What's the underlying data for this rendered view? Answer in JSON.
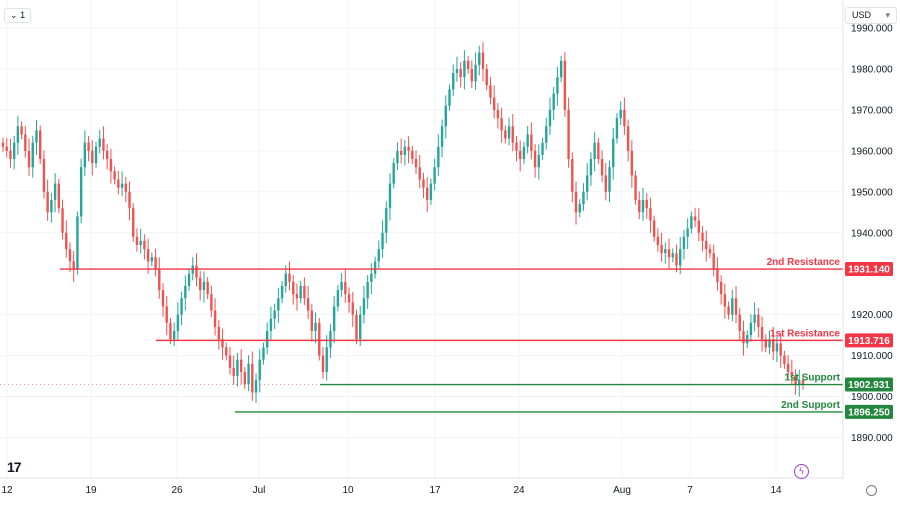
{
  "toolbar": {
    "interval_label": "1",
    "currency_label": "USD"
  },
  "icons": {
    "interval": "chevron-down-icon",
    "currency": "chevron-down-icon",
    "logo": "tradingview-logo-icon",
    "flash": "lightning-icon",
    "settings": "gear-icon"
  },
  "colors": {
    "up": "#26a69a",
    "down": "#ef5350",
    "resistance": "#f23645",
    "support": "#22873c",
    "grid": "#f0f3fa"
  },
  "chart_data": {
    "type": "candlestick",
    "ylim": [
      1887,
      1994
    ],
    "y_ticks": [
      "1990.000",
      "1980.000",
      "1970.000",
      "1960.000",
      "1950.000",
      "1940.000",
      "1920.000",
      "1910.000",
      "1900.000",
      "1890.000"
    ],
    "y_tick_values": [
      1990,
      1980,
      1970,
      1960,
      1950,
      1940,
      1920,
      1910,
      1900,
      1890
    ],
    "x_labels": [
      "12",
      "19",
      "26",
      "Jul",
      "10",
      "17",
      "24",
      "Aug",
      "7",
      "14"
    ],
    "levels": [
      {
        "name": "2nd Resistance",
        "value": 1931.14,
        "label": "1931.140",
        "kind": "resistance"
      },
      {
        "name": "1st Resistance",
        "value": 1913.716,
        "label": "1913.716",
        "kind": "resistance"
      },
      {
        "name": "1st Support",
        "value": 1902.931,
        "label": "1902.931",
        "kind": "support"
      },
      {
        "name": "2nd Support",
        "value": 1896.25,
        "label": "1896.250",
        "kind": "support"
      }
    ],
    "series_close": [
      1961,
      1960,
      1958,
      1962,
      1966,
      1964,
      1960,
      1956,
      1962,
      1965,
      1958,
      1950,
      1945,
      1948,
      1952,
      1946,
      1940,
      1936,
      1933,
      1931,
      1944,
      1956,
      1962,
      1960,
      1957,
      1961,
      1963,
      1960,
      1958,
      1955,
      1953,
      1951,
      1952,
      1950,
      1946,
      1939,
      1937,
      1938,
      1936,
      1933,
      1934,
      1931,
      1926,
      1922,
      1918,
      1914,
      1916,
      1920,
      1924,
      1927,
      1930,
      1932,
      1929,
      1926,
      1928,
      1925,
      1921,
      1917,
      1914,
      1912,
      1910,
      1907,
      1905,
      1909,
      1906,
      1903,
      1908,
      1901,
      1904,
      1909,
      1912,
      1916,
      1919,
      1921,
      1924,
      1927,
      1930,
      1928,
      1925,
      1924,
      1927,
      1924,
      1921,
      1916,
      1918,
      1910,
      1906,
      1912,
      1916,
      1922,
      1926,
      1928,
      1925,
      1923,
      1920,
      1914,
      1920,
      1924,
      1928,
      1930,
      1933,
      1936,
      1940,
      1946,
      1952,
      1957,
      1960,
      1959,
      1961,
      1960,
      1958,
      1956,
      1953,
      1951,
      1948,
      1952,
      1956,
      1961,
      1966,
      1971,
      1975,
      1979,
      1980,
      1978,
      1982,
      1980,
      1977,
      1981,
      1984,
      1980,
      1976,
      1973,
      1970,
      1968,
      1965,
      1963,
      1966,
      1962,
      1960,
      1958,
      1961,
      1964,
      1960,
      1956,
      1959,
      1962,
      1966,
      1970,
      1974,
      1978,
      1982,
      1970,
      1958,
      1950,
      1945,
      1947,
      1950,
      1954,
      1958,
      1962,
      1958,
      1954,
      1950,
      1956,
      1963,
      1968,
      1970,
      1966,
      1960,
      1954,
      1948,
      1945,
      1948,
      1946,
      1943,
      1939,
      1937,
      1935,
      1936,
      1934,
      1935,
      1932,
      1936,
      1939,
      1941,
      1944,
      1943,
      1940,
      1938,
      1936,
      1935,
      1931,
      1928,
      1925,
      1922,
      1920,
      1924,
      1920,
      1916,
      1913,
      1915,
      1918,
      1920,
      1917,
      1914,
      1912,
      1914,
      1911,
      1913,
      1910,
      1908,
      1906,
      1905,
      1903,
      1904,
      1902.9
    ]
  }
}
